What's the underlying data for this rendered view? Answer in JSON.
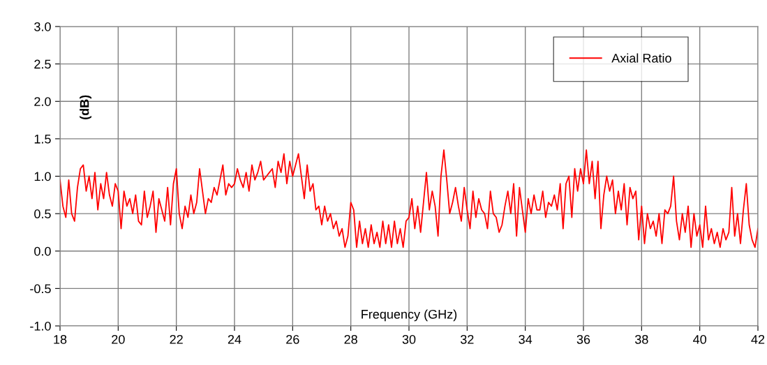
{
  "chart_data": {
    "type": "line",
    "xlabel": "Frequency (GHz)",
    "ylabel": "(dB)",
    "xlim": [
      18,
      42
    ],
    "xticks": [
      18,
      20,
      22,
      24,
      26,
      28,
      30,
      32,
      34,
      36,
      38,
      40,
      42
    ],
    "ylim": [
      -1.0,
      3.0
    ],
    "yticks": [
      {
        "value": -1.0,
        "label": "-1.0"
      },
      {
        "value": -0.5,
        "label": "-0.5"
      },
      {
        "value": 0.0,
        "label": "0.0"
      },
      {
        "value": 0.5,
        "label": "0.5"
      },
      {
        "value": 1.0,
        "label": "1.0"
      },
      {
        "value": 1.5,
        "label": "1.5"
      },
      {
        "value": 2.0,
        "label": "2.0"
      },
      {
        "value": 2.5,
        "label": "2.5"
      },
      {
        "value": 3.0,
        "label": "3.0"
      }
    ],
    "grid": true,
    "legend": "top right",
    "marker": "none",
    "line_style": "solid",
    "series": [
      {
        "name": "Axial Ratio",
        "color": "#ff0000",
        "x": [
          18.0,
          18.1,
          18.2,
          18.3,
          18.4,
          18.5,
          18.6,
          18.7,
          18.8,
          18.9,
          19.0,
          19.1,
          19.2,
          19.3,
          19.4,
          19.5,
          19.6,
          19.7,
          19.8,
          19.9,
          20.0,
          20.1,
          20.2,
          20.3,
          20.4,
          20.5,
          20.6,
          20.7,
          20.8,
          20.9,
          21.0,
          21.1,
          21.2,
          21.3,
          21.4,
          21.5,
          21.6,
          21.7,
          21.8,
          21.9,
          22.0,
          22.1,
          22.2,
          22.3,
          22.4,
          22.5,
          22.6,
          22.7,
          22.8,
          22.9,
          23.0,
          23.1,
          23.2,
          23.3,
          23.4,
          23.5,
          23.6,
          23.7,
          23.8,
          23.9,
          24.0,
          24.1,
          24.2,
          24.3,
          24.4,
          24.5,
          24.6,
          24.7,
          24.8,
          24.9,
          25.0,
          25.1,
          25.2,
          25.3,
          25.4,
          25.5,
          25.6,
          25.7,
          25.8,
          25.9,
          26.0,
          26.1,
          26.2,
          26.3,
          26.4,
          26.5,
          26.6,
          26.7,
          26.8,
          26.9,
          27.0,
          27.1,
          27.2,
          27.3,
          27.4,
          27.5,
          27.6,
          27.7,
          27.8,
          27.9,
          28.0,
          28.1,
          28.2,
          28.3,
          28.4,
          28.5,
          28.6,
          28.7,
          28.8,
          28.9,
          29.0,
          29.1,
          29.2,
          29.3,
          29.4,
          29.5,
          29.6,
          29.7,
          29.8,
          29.9,
          30.0,
          30.1,
          30.2,
          30.3,
          30.4,
          30.5,
          30.6,
          30.7,
          30.8,
          30.9,
          31.0,
          31.1,
          31.2,
          31.3,
          31.4,
          31.5,
          31.6,
          31.7,
          31.8,
          31.9,
          32.0,
          32.1,
          32.2,
          32.3,
          32.4,
          32.5,
          32.6,
          32.7,
          32.8,
          32.9,
          33.0,
          33.1,
          33.2,
          33.3,
          33.4,
          33.5,
          33.6,
          33.7,
          33.8,
          33.9,
          34.0,
          34.1,
          34.2,
          34.3,
          34.4,
          34.5,
          34.6,
          34.7,
          34.8,
          34.9,
          35.0,
          35.1,
          35.2,
          35.3,
          35.4,
          35.5,
          35.6,
          35.7,
          35.8,
          35.9,
          36.0,
          36.1,
          36.2,
          36.3,
          36.4,
          36.5,
          36.6,
          36.7,
          36.8,
          36.9,
          37.0,
          37.1,
          37.2,
          37.3,
          37.4,
          37.5,
          37.6,
          37.7,
          37.8,
          37.9,
          38.0,
          38.1,
          38.2,
          38.3,
          38.4,
          38.5,
          38.6,
          38.7,
          38.8,
          38.9,
          39.0,
          39.1,
          39.2,
          39.3,
          39.4,
          39.5,
          39.6,
          39.7,
          39.8,
          39.9,
          40.0,
          40.1,
          40.2,
          40.3,
          40.4,
          40.5,
          40.6,
          40.7,
          40.8,
          40.9,
          41.0,
          41.1,
          41.2,
          41.3,
          41.4,
          41.5,
          41.6,
          41.7,
          41.8,
          41.9,
          42.0
        ],
        "values": [
          0.95,
          0.6,
          0.45,
          0.95,
          0.5,
          0.4,
          0.85,
          1.1,
          1.15,
          0.8,
          1.0,
          0.7,
          1.05,
          0.55,
          0.9,
          0.7,
          1.05,
          0.75,
          0.6,
          0.9,
          0.8,
          0.3,
          0.8,
          0.6,
          0.7,
          0.5,
          0.75,
          0.4,
          0.35,
          0.8,
          0.45,
          0.6,
          0.8,
          0.25,
          0.7,
          0.55,
          0.4,
          0.85,
          0.35,
          0.9,
          1.1,
          0.5,
          0.3,
          0.6,
          0.45,
          0.75,
          0.5,
          0.65,
          1.1,
          0.8,
          0.5,
          0.7,
          0.65,
          0.85,
          0.75,
          0.95,
          1.15,
          0.75,
          0.9,
          0.85,
          0.9,
          1.1,
          0.95,
          0.85,
          1.05,
          0.8,
          1.15,
          0.95,
          1.05,
          1.2,
          0.95,
          1.0,
          1.05,
          1.1,
          0.85,
          1.2,
          1.05,
          1.3,
          0.9,
          1.2,
          1.0,
          1.15,
          1.3,
          1.0,
          0.7,
          1.15,
          0.8,
          0.9,
          0.55,
          0.6,
          0.35,
          0.6,
          0.4,
          0.5,
          0.3,
          0.4,
          0.2,
          0.3,
          0.05,
          0.2,
          0.65,
          0.55,
          0.05,
          0.4,
          0.1,
          0.3,
          0.05,
          0.35,
          0.1,
          0.25,
          0.05,
          0.4,
          0.1,
          0.35,
          0.05,
          0.4,
          0.1,
          0.3,
          0.05,
          0.4,
          0.45,
          0.7,
          0.3,
          0.6,
          0.25,
          0.65,
          1.05,
          0.55,
          0.8,
          0.6,
          0.2,
          1.0,
          1.35,
          0.95,
          0.5,
          0.65,
          0.85,
          0.6,
          0.4,
          0.85,
          0.55,
          0.3,
          0.8,
          0.45,
          0.7,
          0.55,
          0.5,
          0.3,
          0.8,
          0.5,
          0.45,
          0.25,
          0.35,
          0.6,
          0.8,
          0.5,
          0.9,
          0.2,
          0.85,
          0.55,
          0.25,
          0.7,
          0.5,
          0.75,
          0.55,
          0.55,
          0.8,
          0.45,
          0.65,
          0.6,
          0.75,
          0.55,
          0.9,
          0.3,
          0.9,
          1.0,
          0.45,
          1.1,
          0.8,
          1.1,
          0.9,
          1.35,
          0.9,
          1.2,
          0.7,
          1.2,
          0.3,
          0.75,
          1.0,
          0.8,
          0.95,
          0.5,
          0.8,
          0.55,
          0.9,
          0.35,
          0.85,
          0.7,
          0.8,
          0.15,
          0.6,
          0.1,
          0.5,
          0.3,
          0.4,
          0.2,
          0.5,
          0.1,
          0.55,
          0.5,
          0.6,
          1.0,
          0.4,
          0.15,
          0.5,
          0.25,
          0.6,
          0.05,
          0.5,
          0.2,
          0.35,
          0.05,
          0.6,
          0.15,
          0.3,
          0.1,
          0.25,
          0.05,
          0.3,
          0.15,
          0.25,
          0.85,
          0.2,
          0.5,
          0.1,
          0.55,
          0.9,
          0.35,
          0.15,
          0.05,
          0.3
        ]
      }
    ]
  }
}
